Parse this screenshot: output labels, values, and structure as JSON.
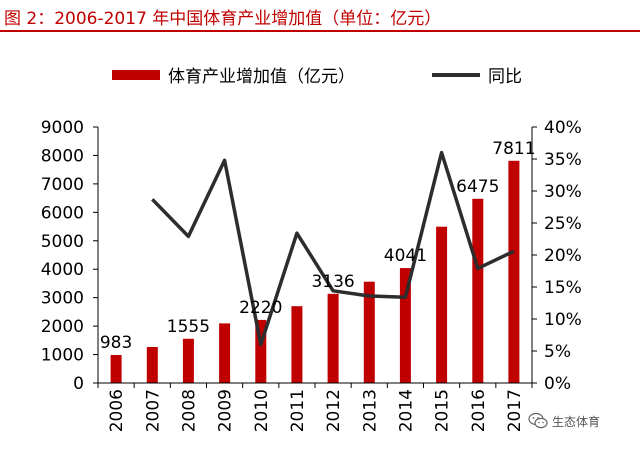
{
  "figure": {
    "title": "图 2：2006-2017 年中国体育产业增加值（单位：亿元）"
  },
  "watermark": {
    "text": "生态体育",
    "icon": "wechat-icon"
  },
  "colors": {
    "bar": "#c00000",
    "line": "#2d2d2d",
    "title": "#c00000",
    "axis": "#000000"
  },
  "chart_data": {
    "type": "bar",
    "categories": [
      "2006",
      "2007",
      "2008",
      "2009",
      "2010",
      "2011",
      "2012",
      "2013",
      "2014",
      "2015",
      "2016",
      "2017"
    ],
    "series": [
      {
        "name": "体育产业增加值（亿元）",
        "type": "bar",
        "axis": "left",
        "values": [
          983,
          1265,
          1555,
          2095,
          2220,
          2700,
          3136,
          3563,
          4041,
          5494,
          6475,
          7811
        ],
        "data_labels": [
          "983",
          null,
          "1555",
          null,
          "2220",
          null,
          "3136",
          null,
          "4041",
          null,
          "6475",
          "7811"
        ]
      },
      {
        "name": "同比",
        "type": "line",
        "axis": "right",
        "values": [
          null,
          0.287,
          0.229,
          0.348,
          0.06,
          0.234,
          0.144,
          0.136,
          0.134,
          0.36,
          0.179,
          0.206
        ]
      }
    ],
    "y_left": {
      "ylim": [
        0,
        9000
      ],
      "ticks": [
        "0",
        "1000",
        "2000",
        "3000",
        "4000",
        "5000",
        "6000",
        "7000",
        "8000",
        "9000"
      ]
    },
    "y_right": {
      "ylim": [
        0,
        0.4
      ],
      "ticks": [
        "0%",
        "5%",
        "10%",
        "15%",
        "20%",
        "25%",
        "30%",
        "35%",
        "40%"
      ]
    },
    "x_tick_rotation": "vertical",
    "legend": "top",
    "grid": false,
    "xlabel": "",
    "ylabel": ""
  }
}
